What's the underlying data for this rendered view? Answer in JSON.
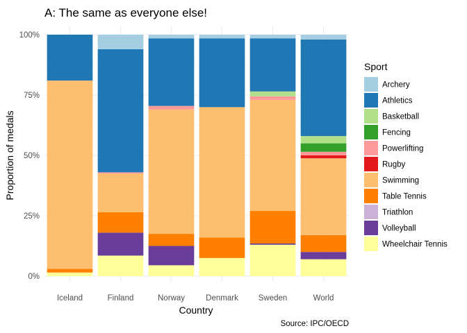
{
  "chart_data": {
    "type": "bar",
    "stacked": true,
    "title": "A: The same as everyone else!",
    "xlabel": "Country",
    "ylabel": "Proportion of medals",
    "caption": "Source: IPC/OECD",
    "ylim": [
      0,
      1
    ],
    "y_ticks": [
      0,
      0.25,
      0.5,
      0.75,
      1
    ],
    "y_tick_labels": [
      "0%",
      "25%",
      "50%",
      "75%",
      "100%"
    ],
    "grid": true,
    "legend": {
      "title": "Sport",
      "position": "right"
    },
    "categories": [
      "Iceland",
      "Finland",
      "Norway",
      "Denmark",
      "Sweden",
      "World"
    ],
    "series": [
      {
        "name": "Archery",
        "color": "#A6CEE3",
        "values": [
          0,
          0.06,
          0.015,
          0.015,
          0.015,
          0.02
        ]
      },
      {
        "name": "Athletics",
        "color": "#1F78B4",
        "values": [
          0.19,
          0.51,
          0.28,
          0.285,
          0.22,
          0.4
        ]
      },
      {
        "name": "Basketball",
        "color": "#B2DF8A",
        "values": [
          0,
          0,
          0,
          0,
          0.02,
          0.03
        ]
      },
      {
        "name": "Fencing",
        "color": "#33A02C",
        "values": [
          0,
          0,
          0,
          0,
          0,
          0.035
        ]
      },
      {
        "name": "Powerlifting",
        "color": "#FB9A99",
        "values": [
          0,
          0.005,
          0.015,
          0,
          0.015,
          0.015
        ]
      },
      {
        "name": "Rugby",
        "color": "#E31A1C",
        "values": [
          0,
          0,
          0,
          0,
          0,
          0.012
        ]
      },
      {
        "name": "Swimming",
        "color": "#FDBF6F",
        "values": [
          0.78,
          0.16,
          0.515,
          0.54,
          0.46,
          0.318
        ]
      },
      {
        "name": "Table Tennis",
        "color": "#FF7F00",
        "values": [
          0.015,
          0.085,
          0.05,
          0.085,
          0.135,
          0.07
        ]
      },
      {
        "name": "Triathlon",
        "color": "#CAB2D6",
        "values": [
          0,
          0,
          0,
          0,
          0,
          0
        ]
      },
      {
        "name": "Volleyball",
        "color": "#6A3D9A",
        "values": [
          0,
          0.095,
          0.08,
          0,
          0.005,
          0.03
        ]
      },
      {
        "name": "Wheelchair Tennis",
        "color": "#FFFF99",
        "values": [
          0.015,
          0.085,
          0.045,
          0.075,
          0.13,
          0.07
        ]
      }
    ]
  }
}
